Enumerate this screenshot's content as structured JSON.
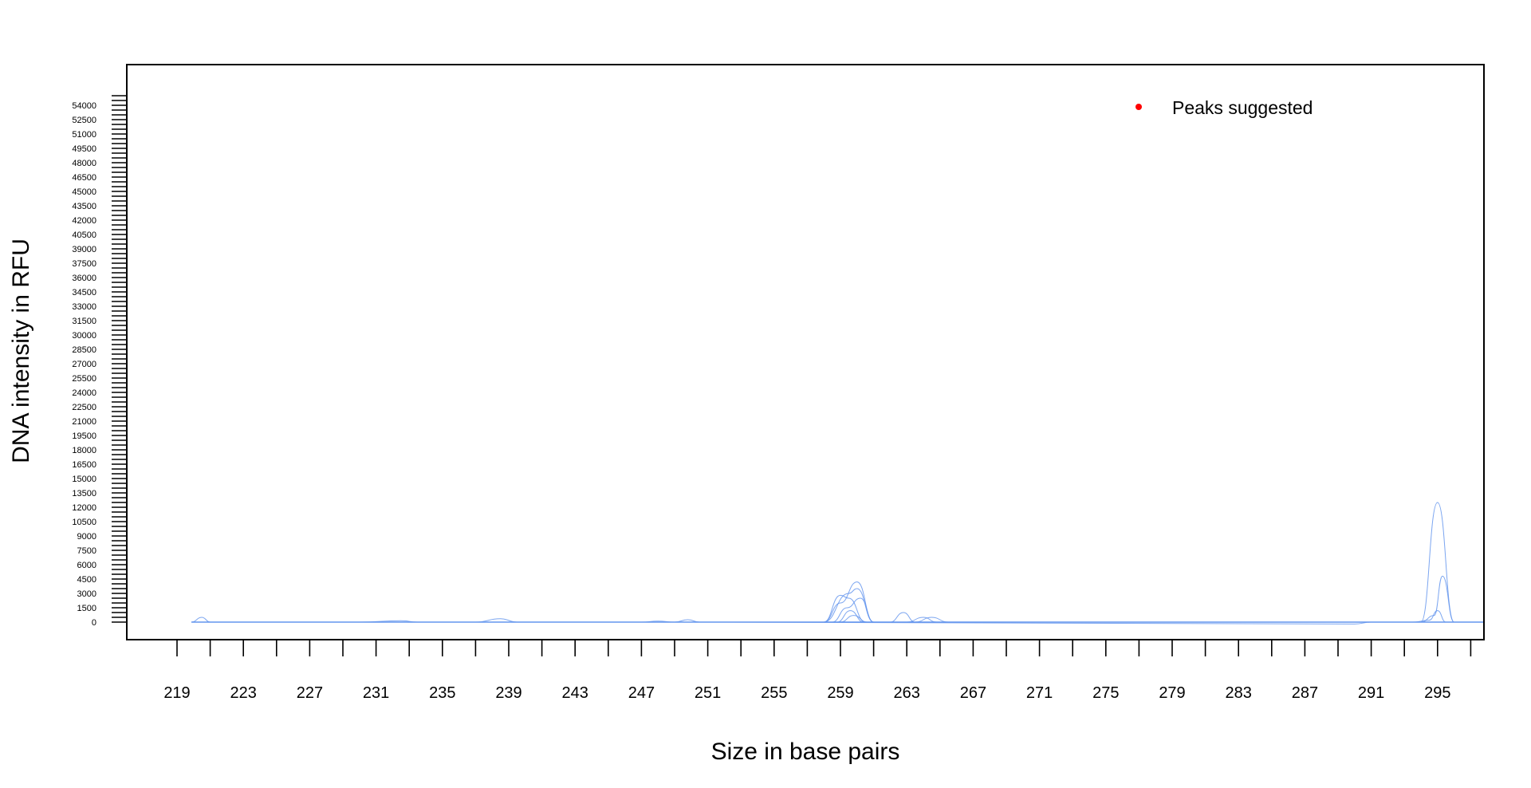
{
  "chart_data": {
    "type": "line",
    "xlabel": "Size in base pairs",
    "ylabel": "DNA intensity in RFU",
    "xlim": [
      215,
      298
    ],
    "ylim": [
      -2000,
      55000
    ],
    "x_ticks": [
      219,
      223,
      227,
      231,
      235,
      239,
      243,
      247,
      251,
      255,
      259,
      263,
      267,
      271,
      275,
      279,
      283,
      287,
      291,
      295
    ],
    "x_minor_step": 2,
    "y_ticks": [
      0,
      1500,
      3000,
      4500,
      6000,
      7500,
      9000,
      10500,
      12000,
      13500,
      15000,
      16500,
      18000,
      19500,
      21000,
      22500,
      24000,
      25500,
      27000,
      28500,
      30000,
      31500,
      33000,
      34500,
      36000,
      37500,
      39000,
      40500,
      42000,
      43500,
      45000,
      46500,
      48000,
      49500,
      51000,
      52500,
      54000
    ],
    "y_minor_step": 500,
    "legend": {
      "label": "Peaks suggested",
      "marker_color": "#ff0000",
      "position": "top-right"
    },
    "line_color": "#6495ED",
    "series": [
      {
        "x": [
          219,
          220.5,
          221,
          223,
          233,
          237,
          238,
          238.5,
          239,
          245,
          249,
          249.8,
          250.5,
          255,
          258,
          259,
          260,
          261,
          262,
          262.8,
          263.5,
          264,
          265,
          268,
          290,
          292,
          294,
          295,
          296,
          297.5
        ],
        "y": [
          0,
          500,
          0,
          0,
          0,
          0,
          0,
          0,
          0,
          0,
          0,
          250,
          0,
          0,
          0,
          2000,
          4200,
          0,
          0,
          1000,
          0,
          0,
          0,
          0,
          0,
          0,
          0,
          12500,
          0,
          0
        ]
      },
      {
        "x": [
          219,
          258,
          259.5,
          260,
          261,
          263.5,
          264.5,
          265.5,
          290,
          294,
          294.8,
          295.3,
          296,
          297.5
        ],
        "y": [
          0,
          0,
          3000,
          3500,
          0,
          0,
          500,
          0,
          0,
          0,
          700,
          4800,
          0,
          0
        ]
      },
      {
        "x": [
          219,
          258,
          259,
          259.5,
          260.5,
          263,
          264,
          264.8,
          290,
          293.5,
          294.5,
          295,
          295.5,
          297.5
        ],
        "y": [
          0,
          0,
          2800,
          2500,
          0,
          0,
          500,
          0,
          0,
          0,
          200,
          1200,
          0,
          0
        ]
      },
      {
        "x": [
          219,
          258.5,
          259.4,
          260.2,
          261,
          297.5
        ],
        "y": [
          0,
          0,
          1500,
          2500,
          0,
          0
        ]
      },
      {
        "x": [
          219,
          258.8,
          259.6,
          260.4,
          297.5
        ],
        "y": [
          0,
          0,
          1200,
          0,
          0
        ]
      },
      {
        "x": [
          219,
          259,
          259.8,
          260.6,
          297.5
        ],
        "y": [
          0,
          0,
          700,
          0,
          0
        ]
      },
      {
        "x": [
          219,
          230,
          232.5,
          233.5,
          235,
          237,
          238.5,
          239.5,
          247,
          248,
          249,
          252,
          290,
          291,
          292,
          297.5
        ],
        "y": [
          0,
          0,
          150,
          0,
          0,
          0,
          350,
          0,
          0,
          100,
          0,
          0,
          -200,
          0,
          0,
          0
        ]
      }
    ]
  }
}
